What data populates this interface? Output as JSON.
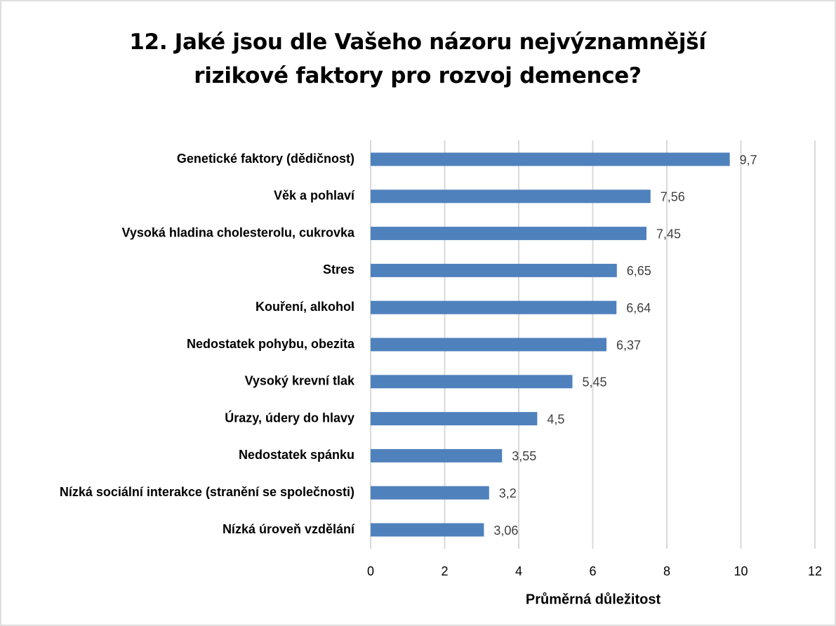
{
  "chart_data": {
    "type": "barh",
    "title": "12. Jaké jsou dle Vašeho názoru nejvýznamnější rizikové faktory pro rozvoj demence?",
    "x_label": "Průměrná důležitost",
    "categories": [
      "Genetické faktory (dědičnost)",
      "Věk a pohlaví",
      "Vysoká hladina cholesterolu, cukrovka",
      "Stres",
      "Kouření, alkohol",
      "Nedostatek pohybu, obezita",
      "Vysoký krevní tlak",
      "Úrazy, údery do hlavy",
      "Nedostatek spánku",
      "Nízká sociální interakce (stranění se společnosti)",
      "Nízká úroveň vzdělání"
    ],
    "values": [
      9.7,
      7.56,
      7.45,
      6.65,
      6.64,
      6.37,
      5.45,
      4.5,
      3.55,
      3.2,
      3.06
    ],
    "value_labels": [
      "9,7",
      "7,56",
      "7,45",
      "6,65",
      "6,64",
      "6,37",
      "5,45",
      "4,5",
      "3,55",
      "3,2",
      "3,06"
    ],
    "color": "#4f81bd",
    "xlim": [
      0,
      12
    ],
    "xticks": [
      0,
      2,
      4,
      6,
      8,
      10,
      12
    ],
    "grid": true
  }
}
